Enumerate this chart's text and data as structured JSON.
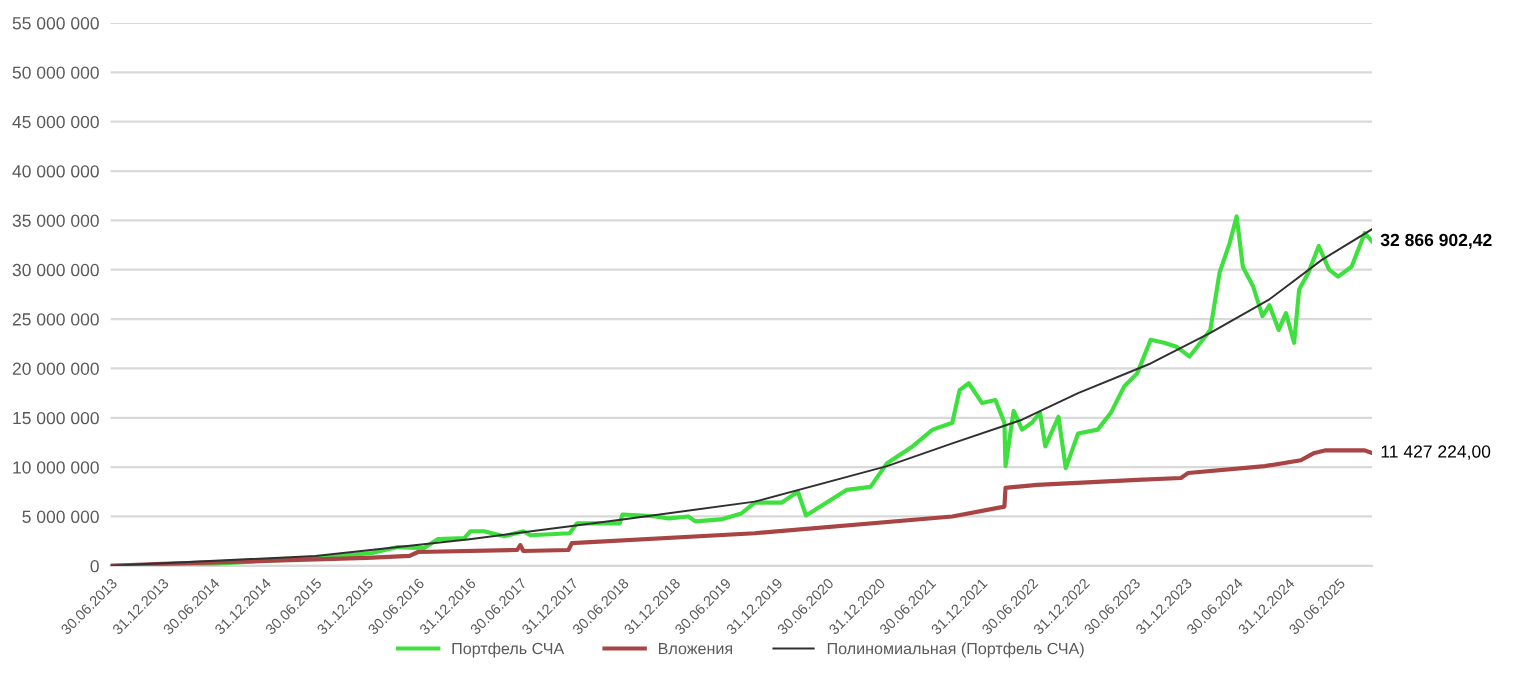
{
  "chart_data": {
    "type": "line",
    "series": [
      {
        "name": "Портфель СЧА",
        "color": "#3ee03e",
        "x": [
          "2013-06-30",
          "2014-06-30",
          "2015-01-01",
          "2015-07-12",
          "2016-01-18",
          "2016-04-20",
          "2016-07-23",
          "2016-09-09",
          "2016-12-13",
          "2017-01-04",
          "2017-02-21",
          "2017-05-05",
          "2017-07-12",
          "2017-08-07",
          "2017-12-24",
          "2018-01-19",
          "2018-03-29",
          "2018-06-21",
          "2018-07-01",
          "2018-09-09",
          "2018-10-26",
          "2018-12-13",
          "2019-02-21",
          "2019-03-18",
          "2019-06-17",
          "2019-08-29",
          "2019-10-16",
          "2020-01-19",
          "2020-03-18",
          "2020-04-16",
          "2020-06-06",
          "2020-09-09",
          "2020-12-02",
          "2021-01-30",
          "2021-05-01",
          "2021-07-12",
          "2021-09-20",
          "2021-10-16",
          "2021-11-18",
          "2022-01-04",
          "2022-02-21",
          "2022-03-25",
          "2022-03-29",
          "2022-04-27",
          "2022-05-27",
          "2022-07-01",
          "2022-07-30",
          "2022-08-18",
          "2022-10-04",
          "2022-10-30",
          "2022-12-13",
          "2023-02-21",
          "2023-04-09",
          "2023-05-27",
          "2023-07-12",
          "2023-08-29",
          "2023-10-16",
          "2023-11-29",
          "2024-01-15",
          "2024-03-29",
          "2024-05-01",
          "2024-06-06",
          "2024-07-01",
          "2024-07-23",
          "2024-08-29",
          "2024-10-01",
          "2024-10-26",
          "2024-11-28",
          "2024-12-24",
          "2025-01-22",
          "2025-02-09",
          "2025-03-14",
          "2025-04-20",
          "2025-05-27",
          "2025-06-28",
          "2025-08-15",
          "2025-10-01",
          "2025-10-27"
        ],
        "values": [
          0,
          200000,
          500000,
          800000,
          1300000,
          1900000,
          1800000,
          2700000,
          2800000,
          3500000,
          3500000,
          3000000,
          3500000,
          3100000,
          3300000,
          4300000,
          4300000,
          4300000,
          5200000,
          5100000,
          5000000,
          4800000,
          5000000,
          4500000,
          4700000,
          5300000,
          6400000,
          6400000,
          7500000,
          5100000,
          6000000,
          7700000,
          8000000,
          10400000,
          12100000,
          13800000,
          14500000,
          17800000,
          18500000,
          16500000,
          16800000,
          14500000,
          10100000,
          15700000,
          13800000,
          14500000,
          15500000,
          12100000,
          15100000,
          9900000,
          13400000,
          13800000,
          15500000,
          18200000,
          19500000,
          22900000,
          22600000,
          22200000,
          21200000,
          23900000,
          29700000,
          32700000,
          35400000,
          30300000,
          28300000,
          25300000,
          26400000,
          23900000,
          25600000,
          22600000,
          28000000,
          29700000,
          32400000,
          30000000,
          29300000,
          30300000,
          33700000,
          32866902.42
        ]
      },
      {
        "name": "Вложения",
        "color": "#a84444",
        "x": [
          "2013-06-30",
          "2013-12-31",
          "2014-12-31",
          "2015-12-31",
          "2016-06-01",
          "2016-07-01",
          "2017-06-20",
          "2017-07-01",
          "2017-07-12",
          "2017-12-20",
          "2018-01-01",
          "2019-10-16",
          "2021-09-20",
          "2022-03-25",
          "2022-03-29",
          "2022-07-20",
          "2023-07-12",
          "2023-12-15",
          "2024-01-10",
          "2024-10-10",
          "2025-02-15",
          "2025-04-01",
          "2025-05-15",
          "2025-10-01",
          "2025-10-27"
        ],
        "values": [
          0,
          200000,
          500000,
          800000,
          1000000,
          1400000,
          1600000,
          2100000,
          1500000,
          1600000,
          2300000,
          3300000,
          5000000,
          6000000,
          7900000,
          8200000,
          8700000,
          8900000,
          9400000,
          10100000,
          10700000,
          11400000,
          11700000,
          11700000,
          11427224.0
        ]
      },
      {
        "name": "Полиномиальная (Портфель СЧА)",
        "color": "#303030",
        "x": [
          "2013-06-30",
          "2015-07-01",
          "2017-01-01",
          "2018-07-01",
          "2019-10-16",
          "2021-01-30",
          "2021-09-20",
          "2022-05-27",
          "2022-12-13",
          "2023-08-29",
          "2024-03-29",
          "2024-10-26",
          "2025-05-01",
          "2025-10-27"
        ],
        "values": [
          0,
          1000000,
          2700000,
          4700000,
          6500000,
          10100000,
          12400000,
          14800000,
          17500000,
          20500000,
          23600000,
          27000000,
          31000000,
          34100000
        ]
      }
    ],
    "xlim": [
      "2013-06-30",
      "2025-10-27"
    ],
    "xticks": [
      {
        "value": "2013-06-30",
        "label": "30.06.2013"
      },
      {
        "value": "2013-12-31",
        "label": "31.12.2013"
      },
      {
        "value": "2014-06-30",
        "label": "30.06.2014"
      },
      {
        "value": "2014-12-31",
        "label": "31.12.2014"
      },
      {
        "value": "2015-06-30",
        "label": "30.06.2015"
      },
      {
        "value": "2015-12-31",
        "label": "31.12.2015"
      },
      {
        "value": "2016-06-30",
        "label": "30.06.2016"
      },
      {
        "value": "2016-12-31",
        "label": "31.12.2016"
      },
      {
        "value": "2017-06-30",
        "label": "30.06.2017"
      },
      {
        "value": "2017-12-31",
        "label": "31.12.2017"
      },
      {
        "value": "2018-06-30",
        "label": "30.06.2018"
      },
      {
        "value": "2018-12-31",
        "label": "31.12.2018"
      },
      {
        "value": "2019-06-30",
        "label": "30.06.2019"
      },
      {
        "value": "2019-12-31",
        "label": "31.12.2019"
      },
      {
        "value": "2020-06-30",
        "label": "30.06.2020"
      },
      {
        "value": "2020-12-31",
        "label": "31.12.2020"
      },
      {
        "value": "2021-06-30",
        "label": "30.06.2021"
      },
      {
        "value": "2021-12-31",
        "label": "31.12.2021"
      },
      {
        "value": "2022-06-30",
        "label": "30.06.2022"
      },
      {
        "value": "2022-12-31",
        "label": "31.12.2022"
      },
      {
        "value": "2023-06-30",
        "label": "30.06.2023"
      },
      {
        "value": "2023-12-31",
        "label": "31.12.2023"
      },
      {
        "value": "2024-06-30",
        "label": "30.06.2024"
      },
      {
        "value": "2024-12-31",
        "label": "31.12.2024"
      },
      {
        "value": "2025-06-30",
        "label": "30.06.2025"
      }
    ],
    "ylim": [
      0,
      55000000
    ],
    "yticks": [
      0,
      {
        "value": 5000000,
        "label": "5 000 000"
      },
      {
        "value": 10000000,
        "label": "10 000 000"
      },
      {
        "value": 15000000,
        "label": "15 000 000"
      },
      {
        "value": 20000000,
        "label": "20 000 000"
      },
      {
        "value": 25000000,
        "label": "25 000 000"
      },
      {
        "value": 30000000,
        "label": "30 000 000"
      },
      {
        "value": 35000000,
        "label": "35 000 000"
      },
      {
        "value": 40000000,
        "label": "40 000 000"
      },
      {
        "value": 45000000,
        "label": "45 000 000"
      },
      {
        "value": 50000000,
        "label": "50 000 000"
      },
      {
        "value": 55000000,
        "label": "55 000 000"
      }
    ],
    "annotations": [
      {
        "text": "32 866 902,42",
        "x": "2025-10-27",
        "y": 32866902.42
      },
      {
        "text": "11 427 224,00",
        "x": "2025-10-27",
        "y": 11427224.0
      }
    ],
    "grid": "y",
    "legend": "bottom",
    "marker": "none",
    "line_style": "solid"
  }
}
